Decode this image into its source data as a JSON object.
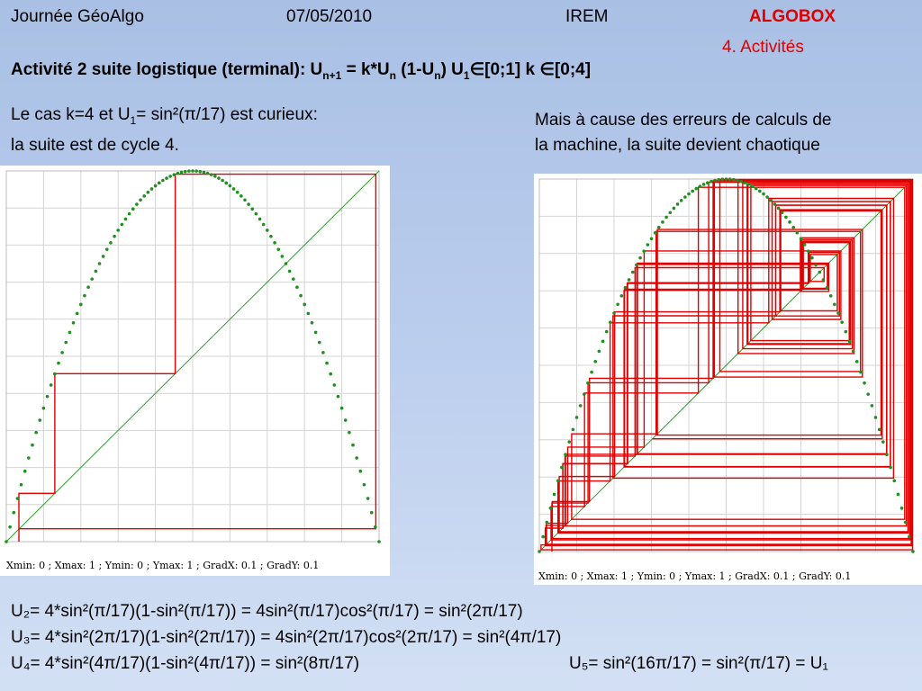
{
  "header": {
    "event": "Journée GéoAlgo",
    "date": "07/05/2010",
    "org": "IREM",
    "product": "ALGOBOX",
    "section": "4. Activités"
  },
  "title": {
    "prefix": "Activité 2  suite logistique (terminal): U",
    "sub1": "n+1",
    "mid1": " = k*U",
    "sub2": "n",
    "mid2": " (1-U",
    "sub3": "n",
    "mid3": ")    U",
    "sub4": "1",
    "elem1": "∈",
    "range1": "[0;1]  k ",
    "elem2": "∈",
    "range2": "[0;4]"
  },
  "left_text": {
    "line1_a": "Le cas k=4 et U",
    "line1_sub": "1",
    "line1_b": "= sin²(",
    "line1_pi": "π",
    "line1_c": "/17) est curieux:",
    "line2": "la suite est de cycle 4."
  },
  "right_text": {
    "line1": "Mais à cause  des erreurs de calculs de",
    "line2": "la machine, la suite devient chaotique"
  },
  "graph_caption": "Xmin: 0 ; Xmax: 1 ; Ymin: 0 ; Ymax: 1 ; GradX: 0.1 ; GradY: 0.1",
  "formulas": {
    "f1": "U₂= 4*sin²(π/17)(1-sin²(π/17)) = 4sin²(π/17)cos²(π/17) = sin²(2π/17)",
    "f2": "U₃= 4*sin²(2π/17)(1-sin²(2π/17)) = 4sin²(2π/17)cos²(2π/17) = sin²(4π/17)",
    "f3": "U₄= 4*sin²(4π/17)(1-sin²(4π/17)) = sin²(8π/17)",
    "f4": "U₅= sin²(16π/17) = sin²(π/17) = U₁"
  },
  "colors": {
    "curve": "#1f8f1f",
    "diagonal": "#2e9e2e",
    "cobweb": "#e00000",
    "grid": "#d4d4d4",
    "accent": "#e00000"
  },
  "chart_data": [
    {
      "type": "line",
      "xlim": [
        0,
        1
      ],
      "ylim": [
        0,
        1
      ],
      "gradx": 0.1,
      "grady": 0.1,
      "grid": true,
      "k": 4,
      "u1": 0.0337,
      "iterations": 4,
      "series": [
        {
          "kind": "logistic-curve"
        },
        {
          "kind": "diagonal"
        },
        {
          "kind": "cobweb"
        }
      ]
    },
    {
      "type": "line",
      "xlim": [
        0,
        1
      ],
      "ylim": [
        0,
        1
      ],
      "gradx": 0.1,
      "grady": 0.1,
      "grid": true,
      "k": 4,
      "u1": 0.0337,
      "iterations": 90,
      "series": [
        {
          "kind": "logistic-curve"
        },
        {
          "kind": "diagonal"
        },
        {
          "kind": "cobweb"
        }
      ]
    }
  ]
}
